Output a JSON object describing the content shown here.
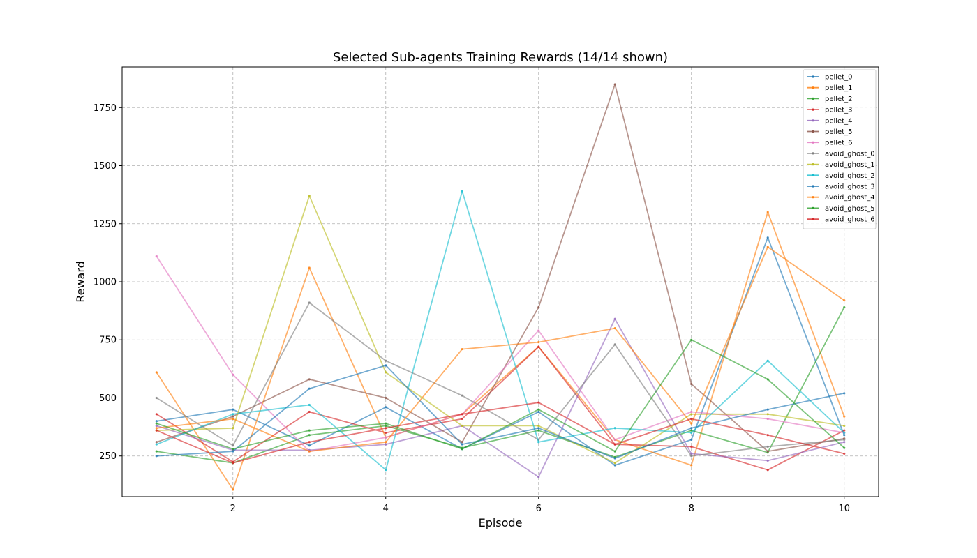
{
  "chart_data": {
    "type": "line",
    "title": "Selected Sub-agents Training Rewards (14/14 shown)",
    "xlabel": "Episode",
    "ylabel": "Reward",
    "x": [
      1,
      2,
      3,
      4,
      5,
      6,
      7,
      8,
      9,
      10
    ],
    "xlim": [
      0.55,
      10.45
    ],
    "ylim": [
      75,
      1925
    ],
    "xticks": [
      2,
      4,
      6,
      8,
      10
    ],
    "yticks": [
      250,
      500,
      750,
      1000,
      1250,
      1500,
      1750
    ],
    "grid": true,
    "legend_position": "top-right",
    "series": [
      {
        "name": "pellet_0",
        "color": "#1f77b4",
        "values": [
          400,
          450,
          295,
          460,
          280,
          440,
          210,
          320,
          1190,
          340
        ]
      },
      {
        "name": "pellet_1",
        "color": "#ff7f0e",
        "values": [
          610,
          105,
          1060,
          330,
          430,
          720,
          320,
          210,
          1300,
          420
        ]
      },
      {
        "name": "pellet_2",
        "color": "#2ca02c",
        "values": [
          270,
          220,
          340,
          380,
          285,
          360,
          245,
          360,
          265,
          890
        ]
      },
      {
        "name": "pellet_3",
        "color": "#d62728",
        "values": [
          430,
          225,
          440,
          350,
          410,
          720,
          300,
          290,
          190,
          360
        ]
      },
      {
        "name": "pellet_4",
        "color": "#9467bd",
        "values": [
          380,
          275,
          275,
          300,
          380,
          160,
          840,
          260,
          230,
          310
        ]
      },
      {
        "name": "pellet_5",
        "color": "#8c564b",
        "values": [
          310,
          420,
          580,
          500,
          310,
          890,
          1850,
          560,
          270,
          325
        ]
      },
      {
        "name": "pellet_6",
        "color": "#e377c2",
        "values": [
          1110,
          600,
          270,
          330,
          430,
          790,
          320,
          440,
          410,
          350
        ]
      },
      {
        "name": "avoid_ghost_0",
        "color": "#7f7f7f",
        "values": [
          500,
          295,
          910,
          660,
          510,
          320,
          730,
          250,
          290,
          320
        ]
      },
      {
        "name": "avoid_ghost_1",
        "color": "#bcbd22",
        "values": [
          360,
          370,
          1370,
          610,
          380,
          380,
          220,
          430,
          430,
          380
        ]
      },
      {
        "name": "avoid_ghost_2",
        "color": "#17becf",
        "values": [
          300,
          430,
          470,
          190,
          1390,
          310,
          370,
          350,
          660,
          350
        ]
      },
      {
        "name": "avoid_ghost_3",
        "color": "#1f77b4",
        "values": [
          250,
          270,
          540,
          640,
          300,
          370,
          240,
          370,
          450,
          520
        ]
      },
      {
        "name": "avoid_ghost_4",
        "color": "#ff7f0e",
        "values": [
          370,
          410,
          270,
          310,
          710,
          740,
          800,
          390,
          1150,
          920
        ]
      },
      {
        "name": "avoid_ghost_5",
        "color": "#2ca02c",
        "values": [
          390,
          280,
          360,
          390,
          280,
          450,
          270,
          750,
          580,
          285
        ]
      },
      {
        "name": "avoid_ghost_6",
        "color": "#d62728",
        "values": [
          360,
          220,
          310,
          370,
          430,
          480,
          300,
          410,
          340,
          260
        ]
      }
    ]
  }
}
